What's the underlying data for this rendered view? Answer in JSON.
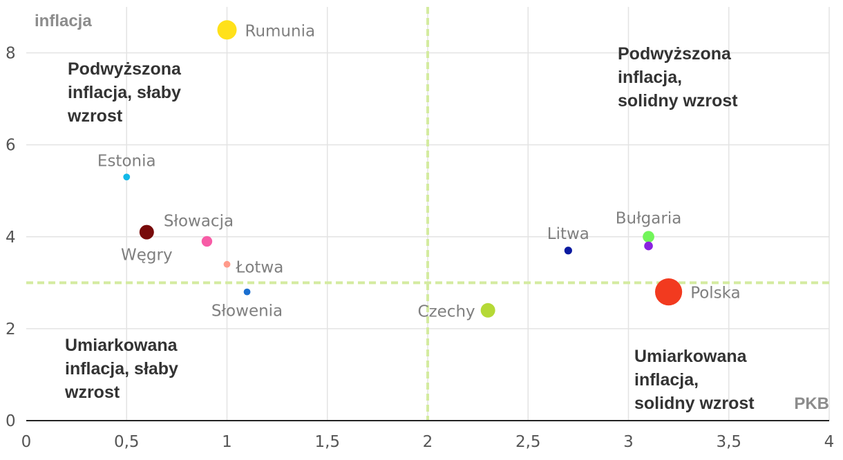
{
  "chart_data": {
    "type": "scatter",
    "title": "",
    "xlabel": "PKB",
    "ylabel": "inflacja",
    "xlim": [
      0,
      4
    ],
    "ylim": [
      0,
      9
    ],
    "grid": true,
    "x_ticks": [
      {
        "value": 0,
        "label": "0"
      },
      {
        "value": 0.5,
        "label": "0,5"
      },
      {
        "value": 1,
        "label": "1"
      },
      {
        "value": 1.5,
        "label": "1,5"
      },
      {
        "value": 2,
        "label": "2"
      },
      {
        "value": 2.5,
        "label": "2,5"
      },
      {
        "value": 3,
        "label": "3"
      },
      {
        "value": 3.5,
        "label": "3,5"
      },
      {
        "value": 4,
        "label": "4"
      }
    ],
    "y_ticks": [
      {
        "value": 0,
        "label": "0"
      },
      {
        "value": 2,
        "label": "2"
      },
      {
        "value": 4,
        "label": "4"
      },
      {
        "value": 6,
        "label": "6"
      },
      {
        "value": 8,
        "label": "8"
      }
    ],
    "reference_lines": {
      "x": 2,
      "y": 3,
      "color": "#d4eba0"
    },
    "quadrant_labels": [
      {
        "position": "top-left",
        "lines": [
          "Podwyższona",
          "inflacja, słaby",
          "wzrost"
        ]
      },
      {
        "position": "top-right",
        "lines": [
          "Podwyższona",
          "inflacja,",
          "solidny wzrost"
        ]
      },
      {
        "position": "bottom-left",
        "lines": [
          "Umiarkowana",
          "inflacja, słaby",
          "wzrost"
        ]
      },
      {
        "position": "bottom-right",
        "lines": [
          "Umiarkowana",
          "inflacja,",
          "solidny wzrost"
        ]
      }
    ],
    "points": [
      {
        "country": "Rumunia",
        "x": 1.0,
        "y": 8.5,
        "size": 2.0,
        "color": "#ffe11a",
        "label_side": "right"
      },
      {
        "country": "Estonia",
        "x": 0.5,
        "y": 5.3,
        "size": 0.7,
        "color": "#12b8e8",
        "label_side": "above"
      },
      {
        "country": "Węgry",
        "x": 0.6,
        "y": 4.1,
        "size": 1.5,
        "color": "#780a0a",
        "label_side": "below"
      },
      {
        "country": "Słowacja",
        "x": 0.9,
        "y": 3.9,
        "size": 1.1,
        "color": "#f75ca6",
        "label_side": "above-right"
      },
      {
        "country": "Łotwa",
        "x": 1.0,
        "y": 3.4,
        "size": 0.7,
        "color": "#ff9a8a",
        "label_side": "right-below"
      },
      {
        "country": "Słowenia",
        "x": 1.1,
        "y": 2.8,
        "size": 0.7,
        "color": "#1a6fd0",
        "label_side": "below"
      },
      {
        "country": "Czechy",
        "x": 2.3,
        "y": 2.4,
        "size": 1.5,
        "color": "#b5d936",
        "label_side": "left"
      },
      {
        "country": "Litwa",
        "x": 2.7,
        "y": 3.7,
        "size": 0.8,
        "color": "#0a1aa0",
        "label_side": "above"
      },
      {
        "country": "Bułgaria",
        "x": 3.1,
        "y": 4.0,
        "size": 1.2,
        "color": "#72f55a",
        "label_side": "above"
      },
      {
        "country": "",
        "x": 3.1,
        "y": 3.8,
        "size": 0.9,
        "color": "#8a22e0",
        "label_side": "none"
      },
      {
        "country": "Polska",
        "x": 3.2,
        "y": 2.8,
        "size": 2.8,
        "color": "#f23a1f",
        "label_side": "right"
      }
    ]
  }
}
